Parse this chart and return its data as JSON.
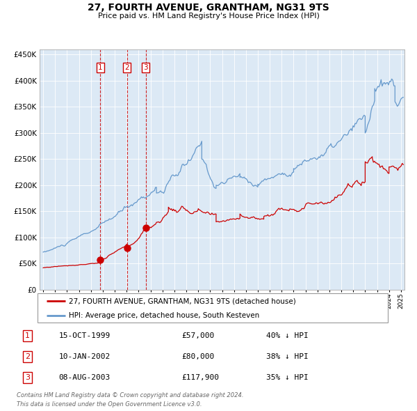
{
  "title": "27, FOURTH AVENUE, GRANTHAM, NG31 9TS",
  "subtitle": "Price paid vs. HM Land Registry's House Price Index (HPI)",
  "legend_line1": "27, FOURTH AVENUE, GRANTHAM, NG31 9TS (detached house)",
  "legend_line2": "HPI: Average price, detached house, South Kesteven",
  "footer1": "Contains HM Land Registry data © Crown copyright and database right 2024.",
  "footer2": "This data is licensed under the Open Government Licence v3.0.",
  "transactions": [
    {
      "num": 1,
      "date": "15-OCT-1999",
      "price": "£57,000",
      "pct": "40%",
      "dir": "↓",
      "year_x": 1999.79,
      "price_y": 57000
    },
    {
      "num": 2,
      "date": "10-JAN-2002",
      "price": "£80,000",
      "pct": "38%",
      "dir": "↓",
      "year_x": 2002.03,
      "price_y": 80000
    },
    {
      "num": 3,
      "date": "08-AUG-2003",
      "price": "£117,900",
      "pct": "35%",
      "dir": "↓",
      "year_x": 2003.6,
      "price_y": 117900
    }
  ],
  "background_color": "#dce9f5",
  "red_color": "#cc0000",
  "blue_color": "#6699cc",
  "ylim": [
    0,
    460000
  ],
  "xlim_start": 1994.7,
  "xlim_end": 2025.3,
  "yticks": [
    0,
    50000,
    100000,
    150000,
    200000,
    250000,
    300000,
    350000,
    400000,
    450000
  ],
  "xtick_start": 1995,
  "xtick_end": 2025
}
